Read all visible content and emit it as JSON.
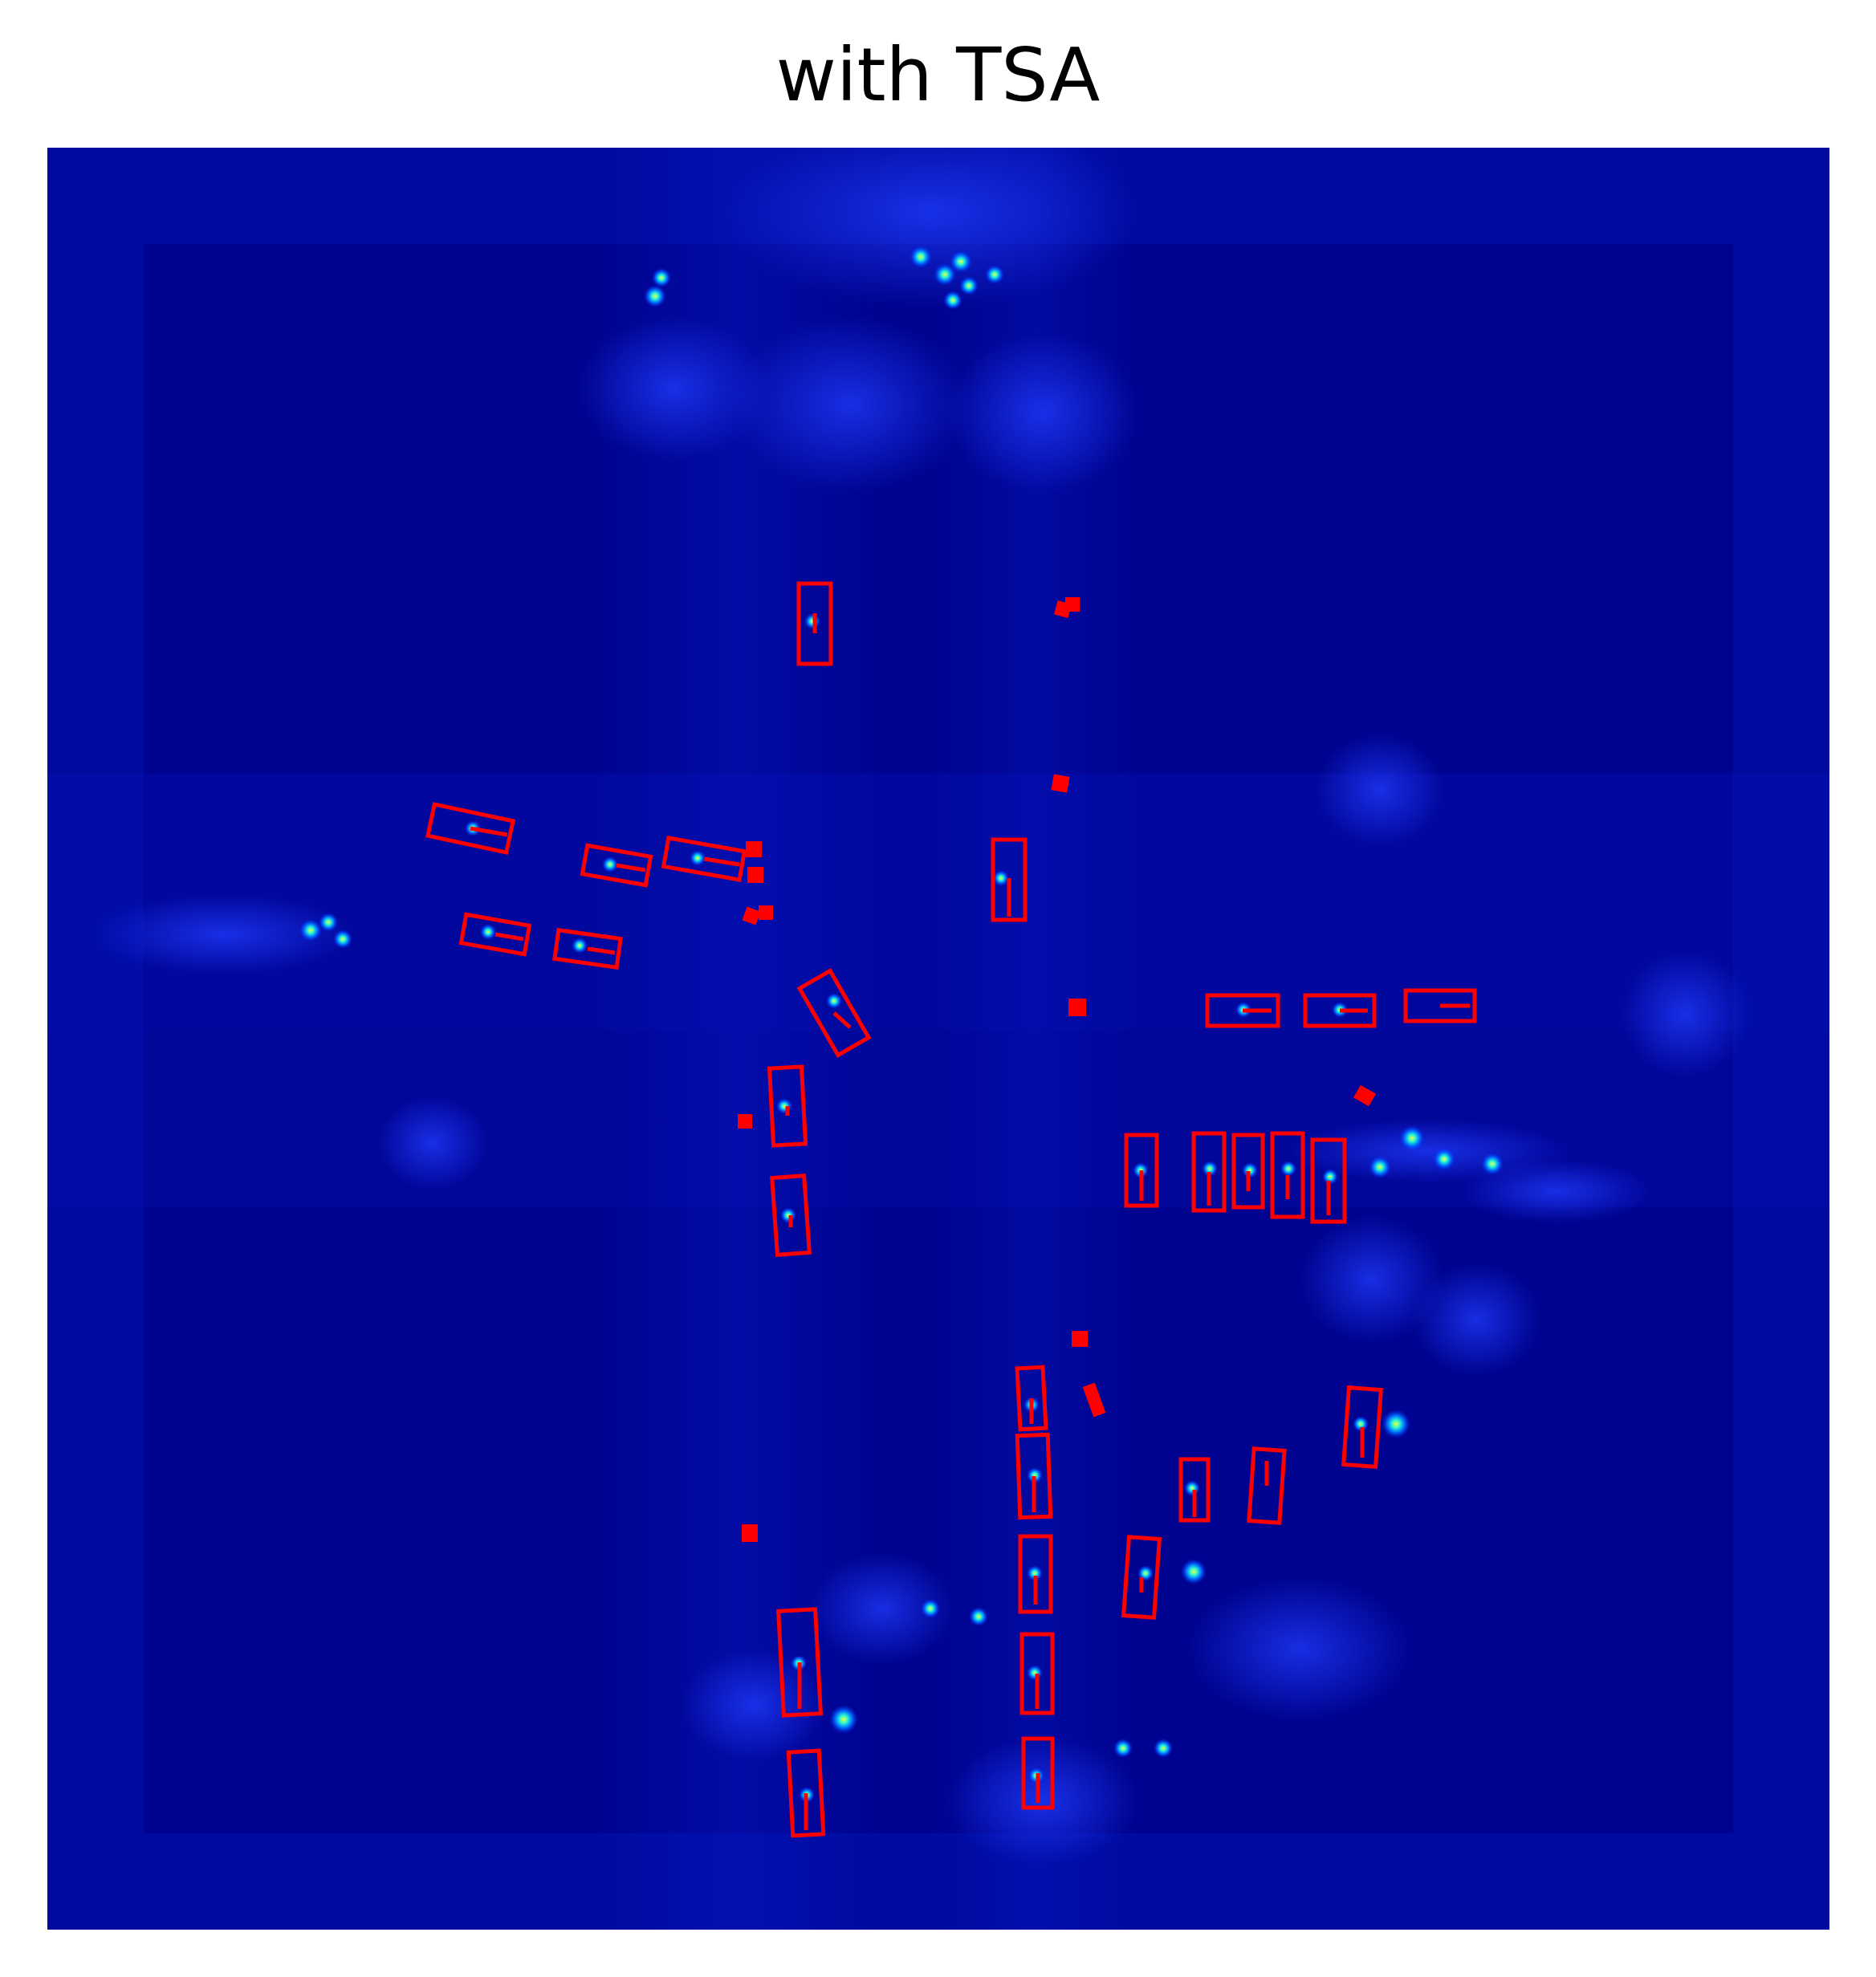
{
  "figure": {
    "title": "with TSA"
  },
  "heatmap": {
    "colormap": "jet",
    "background_color": "#00008c",
    "box_color": "#ff0000",
    "box_count": 44
  }
}
